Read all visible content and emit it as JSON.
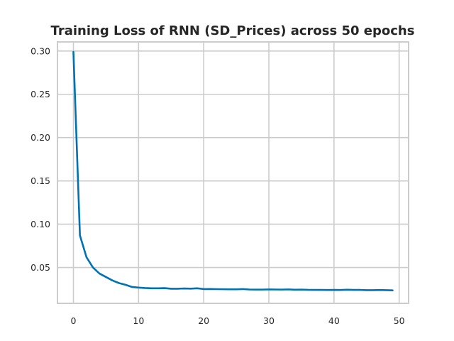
{
  "chart_data": {
    "type": "line",
    "title": "Training Loss of RNN (SD_Prices) across 50 epochs",
    "xlabel": "",
    "ylabel": "",
    "xlim": [
      -2.45,
      51.45
    ],
    "ylim": [
      0.0086,
      0.3105
    ],
    "xticks": [
      0,
      10,
      20,
      30,
      40,
      50
    ],
    "xtick_labels": [
      "0",
      "10",
      "20",
      "30",
      "40",
      "50"
    ],
    "yticks": [
      0.05,
      0.1,
      0.15,
      0.2,
      0.25,
      0.3
    ],
    "ytick_labels": [
      "0.05",
      "0.10",
      "0.15",
      "0.20",
      "0.25",
      "0.30"
    ],
    "grid": true,
    "legend": false,
    "series": [
      {
        "color": "#0072b2",
        "x": [
          0,
          1,
          2,
          3,
          4,
          5,
          6,
          7,
          8,
          9,
          10,
          11,
          12,
          13,
          14,
          15,
          16,
          17,
          18,
          19,
          20,
          21,
          22,
          23,
          24,
          25,
          26,
          27,
          28,
          29,
          30,
          31,
          32,
          33,
          34,
          35,
          36,
          37,
          38,
          39,
          40,
          41,
          42,
          43,
          44,
          45,
          46,
          47,
          48,
          49
        ],
        "y": [
          0.299,
          0.087,
          0.062,
          0.05,
          0.043,
          0.039,
          0.035,
          0.032,
          0.03,
          0.0275,
          0.0268,
          0.0263,
          0.026,
          0.026,
          0.0262,
          0.0255,
          0.0255,
          0.0258,
          0.0256,
          0.026,
          0.0251,
          0.0252,
          0.025,
          0.0249,
          0.0248,
          0.0248,
          0.0251,
          0.0246,
          0.0245,
          0.0245,
          0.0247,
          0.0246,
          0.0245,
          0.0247,
          0.0243,
          0.0245,
          0.0242,
          0.0241,
          0.0241,
          0.024,
          0.0241,
          0.024,
          0.0243,
          0.0241,
          0.0241,
          0.0238,
          0.0238,
          0.024,
          0.0238,
          0.0236
        ]
      }
    ]
  }
}
